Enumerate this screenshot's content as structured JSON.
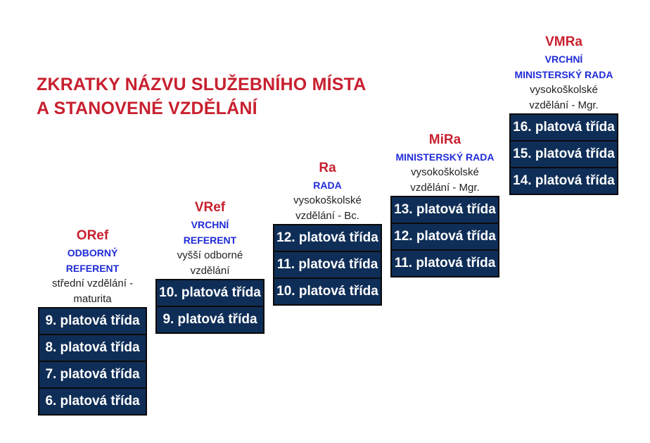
{
  "title": {
    "line1": "ZKRATKY NÁZVU SLUŽEBNÍHO MÍSTA",
    "line2": "A STANOVENÉ VZDĚLÁNÍ"
  },
  "columns": [
    {
      "abbr": "ORef",
      "rank_lines": [
        "ODBORNÝ",
        "REFERENT"
      ],
      "edu_lines": [
        "střední vzdělání -",
        "maturita"
      ],
      "classes": [
        "9. platová třída",
        "8. platová třída",
        "7. platová třída",
        "6. platová třída"
      ]
    },
    {
      "abbr": "VRef",
      "rank_lines": [
        "VRCHNÍ",
        "REFERENT"
      ],
      "edu_lines": [
        "vyšší odborné",
        "vzdělání"
      ],
      "classes": [
        "10. platová třída",
        "9. platová třída"
      ]
    },
    {
      "abbr": "Ra",
      "rank_lines": [
        "RADA"
      ],
      "edu_lines": [
        "vysokoškolské",
        "vzdělání - Bc."
      ],
      "classes": [
        "12. platová třída",
        "11. platová třída",
        "10. platová třída"
      ]
    },
    {
      "abbr": "MiRa",
      "rank_lines": [
        "MINISTERSKÝ RADA"
      ],
      "edu_lines": [
        "vysokoškolské",
        "vzdělání - Mgr."
      ],
      "classes": [
        "13. platová třída",
        "12. platová třída",
        "11. platová třída"
      ]
    },
    {
      "abbr": "VMRa",
      "rank_lines": [
        "VRCHNÍ",
        "MINISTERSKÝ RADA"
      ],
      "edu_lines": [
        "vysokoškolské",
        "vzdělání - Mgr."
      ],
      "classes": [
        "16. platová třída",
        "15. platová třída",
        "14. platová třída"
      ]
    }
  ],
  "colors": {
    "accent_red": "#c8202f",
    "rank_blue": "#1f2bd6",
    "box_navy": "#0f2e57"
  }
}
